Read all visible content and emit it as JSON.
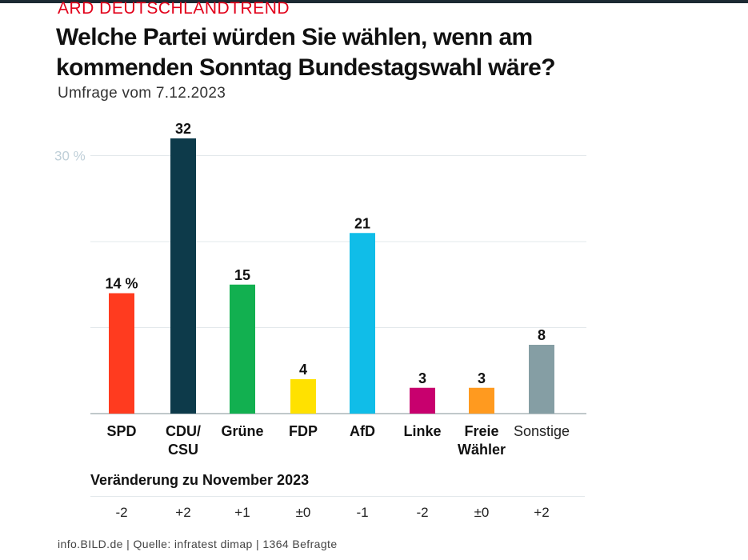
{
  "header": {
    "brand": "ARD DEUTSCHLANDTREND",
    "title": "Welche Partei würden Sie wählen, wenn am kommenden Sonntag Bundestagswahl wäre?",
    "subtitle": "Umfrage vom 7.12.2023"
  },
  "chart_data": {
    "type": "bar",
    "title": "Welche Partei würden Sie wählen, wenn am kommenden Sonntag Bundestagswahl wäre?",
    "ylabel": "",
    "xlabel": "",
    "unit": "%",
    "ylim": [
      0,
      32
    ],
    "y_ticks": [
      0,
      10,
      20,
      30
    ],
    "y_tick_label": "30 %",
    "grid": true,
    "categories": [
      [
        "SPD"
      ],
      [
        "CDU/",
        "CSU"
      ],
      [
        "Grüne"
      ],
      [
        "FDP"
      ],
      [
        "AfD"
      ],
      [
        "Linke"
      ],
      [
        "Freie",
        "Wähler"
      ],
      [
        "Sonstige"
      ]
    ],
    "values": [
      14,
      32,
      15,
      4,
      21,
      3,
      3,
      8
    ],
    "value_labels": [
      "14 %",
      "32",
      "15",
      "4",
      "21",
      "3",
      "3",
      "8"
    ],
    "colors": [
      "#ff3b1f",
      "#0d3a4a",
      "#12b050",
      "#ffe100",
      "#10bde8",
      "#c8006e",
      "#ff9a1f",
      "#859ea4"
    ],
    "changes_title": "Veränderung zu November 2023",
    "changes": [
      "-2",
      "+2",
      "+1",
      "±0",
      "-1",
      "-2",
      "±0",
      "+2"
    ]
  },
  "footer": {
    "source": "info.BILD.de | Quelle: infratest dimap | 1364 Befragte"
  },
  "colors": {
    "brand_red": "#e2001a",
    "grid": "#e3e8eb",
    "tick_text": "#bfcfd8"
  }
}
